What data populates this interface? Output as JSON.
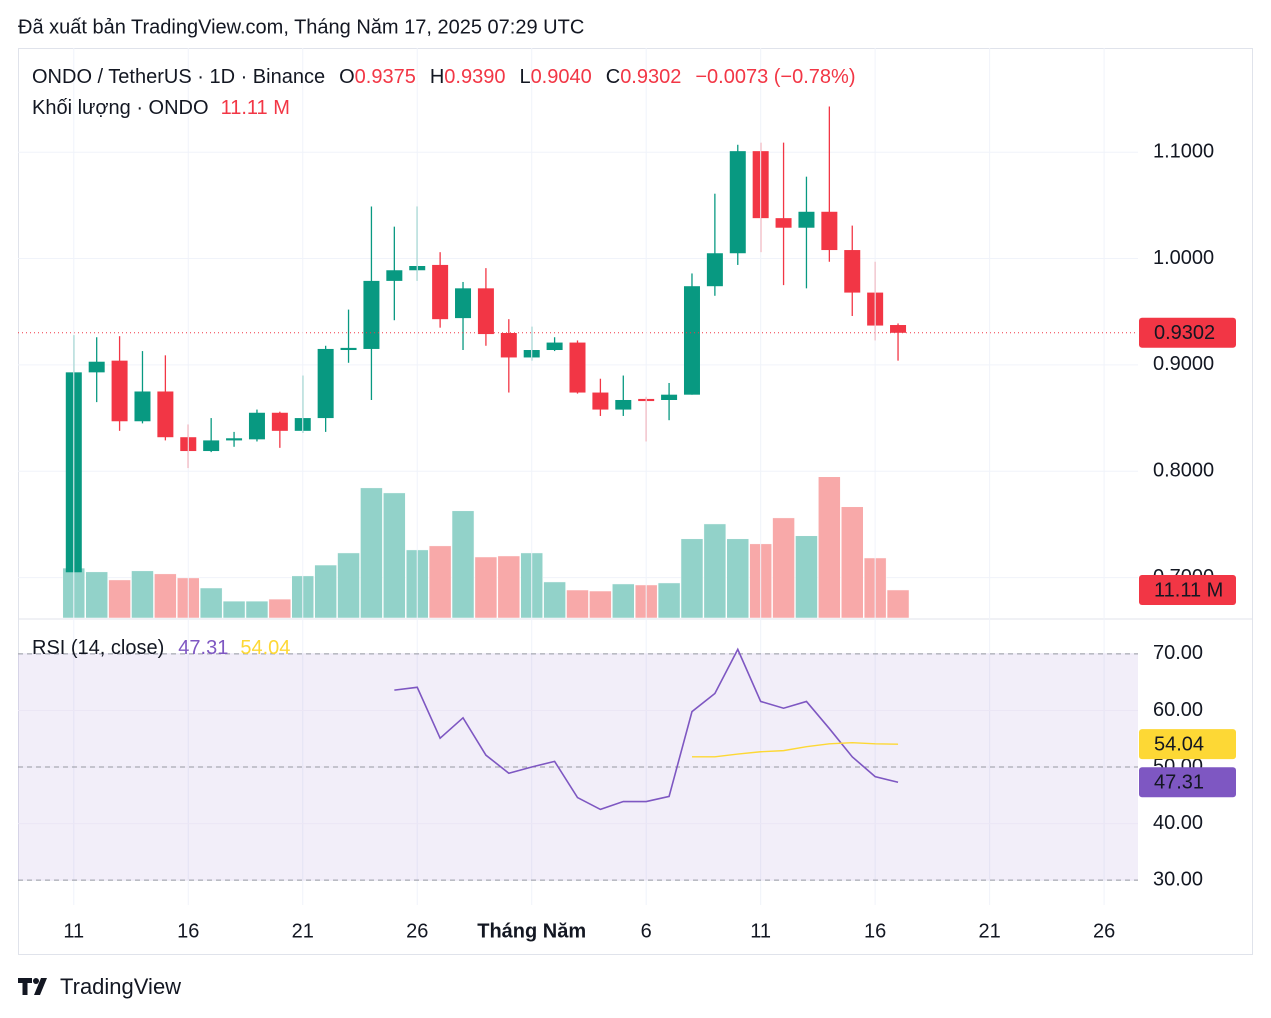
{
  "header": {
    "published": "Đã xuất bản TradingView.com, Tháng Năm 17, 2025 07:29 UTC"
  },
  "legend": {
    "symbol": "ONDO / TetherUS · 1D · Binance",
    "o": "O",
    "open": "0.9375",
    "h": "H",
    "high": "0.9390",
    "l": "L",
    "low": "0.9040",
    "c": "C",
    "close": "0.9302",
    "change": "−0.0073 (−0.78%)",
    "volume_title": "Khối lượng · ONDO",
    "volume": "11.11 M"
  },
  "footer": {
    "brand": "TradingView"
  },
  "chart_data": [
    {
      "type": "candlestick",
      "x": [
        "2025-04-11",
        "2025-04-12",
        "2025-04-13",
        "2025-04-14",
        "2025-04-15",
        "2025-04-16",
        "2025-04-17",
        "2025-04-18",
        "2025-04-19",
        "2025-04-20",
        "2025-04-21",
        "2025-04-22",
        "2025-04-23",
        "2025-04-24",
        "2025-04-25",
        "2025-04-26",
        "2025-04-27",
        "2025-04-28",
        "2025-04-29",
        "2025-04-30",
        "2025-05-01",
        "2025-05-02",
        "2025-05-03",
        "2025-05-04",
        "2025-05-05",
        "2025-05-06",
        "2025-05-07",
        "2025-05-08",
        "2025-05-09",
        "2025-05-10",
        "2025-05-11",
        "2025-05-12",
        "2025-05-13",
        "2025-05-14",
        "2025-05-15",
        "2025-05-16",
        "2025-05-17"
      ],
      "open": [
        0.705,
        0.893,
        0.904,
        0.847,
        0.875,
        0.832,
        0.819,
        0.829,
        0.83,
        0.855,
        0.838,
        0.85,
        0.914,
        0.915,
        0.979,
        0.989,
        0.994,
        0.944,
        0.972,
        0.93,
        0.907,
        0.914,
        0.921,
        0.874,
        0.858,
        0.868,
        0.867,
        0.872,
        0.974,
        1.005,
        1.101,
        1.038,
        1.029,
        1.044,
        1.008,
        0.968,
        0.9375
      ],
      "high": [
        0.928,
        0.926,
        0.927,
        0.913,
        0.909,
        0.844,
        0.85,
        0.837,
        0.858,
        0.856,
        0.89,
        0.918,
        0.952,
        1.049,
        1.03,
        1.049,
        1.006,
        0.978,
        0.991,
        0.943,
        0.936,
        0.926,
        0.923,
        0.887,
        0.89,
        0.87,
        0.883,
        0.986,
        1.061,
        1.107,
        1.109,
        1.109,
        1.077,
        1.143,
        1.031,
        0.997,
        0.939
      ],
      "low": [
        0.705,
        0.865,
        0.838,
        0.845,
        0.829,
        0.803,
        0.818,
        0.823,
        0.828,
        0.822,
        0.836,
        0.837,
        0.902,
        0.867,
        0.942,
        0.979,
        0.935,
        0.914,
        0.918,
        0.874,
        0.904,
        0.913,
        0.873,
        0.852,
        0.852,
        0.828,
        0.848,
        0.872,
        0.965,
        0.994,
        1.006,
        0.975,
        0.972,
        0.997,
        0.946,
        0.923,
        0.904
      ],
      "close": [
        0.893,
        0.903,
        0.847,
        0.875,
        0.832,
        0.819,
        0.829,
        0.831,
        0.855,
        0.838,
        0.85,
        0.915,
        0.916,
        0.979,
        0.989,
        0.993,
        0.943,
        0.972,
        0.929,
        0.907,
        0.914,
        0.921,
        0.874,
        0.858,
        0.867,
        0.866,
        0.872,
        0.974,
        1.005,
        1.101,
        1.038,
        1.029,
        1.044,
        1.008,
        0.968,
        0.937,
        0.9302
      ],
      "volume": [
        19.8,
        18.3,
        15.1,
        18.7,
        17.5,
        15.9,
        11.9,
        6.7,
        6.7,
        7.5,
        16.7,
        21.0,
        25.8,
        51.6,
        49.6,
        27.0,
        28.6,
        42.5,
        24.2,
        24.6,
        25.8,
        14.3,
        11.1,
        10.7,
        13.5,
        13.1,
        13.9,
        31.4,
        37.3,
        31.4,
        29.4,
        39.7,
        32.6,
        56.0,
        44.1,
        23.8,
        11.11
      ],
      "up_color": "#089981",
      "down_color": "#f23645",
      "volume_up_color": "#92d2c9",
      "volume_down_color": "#f8a9a9",
      "xlim": [
        "2025-04-09",
        "2025-05-27"
      ],
      "ylim": [
        0.662,
        1.198
      ],
      "yticks": [
        {
          "value": 0.7,
          "label": "0.7000"
        },
        {
          "value": 0.8,
          "label": "0.8000"
        },
        {
          "value": 0.9,
          "label": "0.9000"
        },
        {
          "value": 1.0,
          "label": "1.0000"
        },
        {
          "value": 1.1,
          "label": "1.1000"
        }
      ],
      "y2lim": [
        0,
        226
      ],
      "grid": true
    },
    {
      "type": "line",
      "title": "RSI (14, close)",
      "x": [
        "2025-04-11",
        "2025-04-12",
        "2025-04-13",
        "2025-04-14",
        "2025-04-15",
        "2025-04-16",
        "2025-04-17",
        "2025-04-18",
        "2025-04-19",
        "2025-04-20",
        "2025-04-21",
        "2025-04-22",
        "2025-04-23",
        "2025-04-24",
        "2025-04-25",
        "2025-04-26",
        "2025-04-27",
        "2025-04-28",
        "2025-04-29",
        "2025-04-30",
        "2025-05-01",
        "2025-05-02",
        "2025-05-03",
        "2025-05-04",
        "2025-05-05",
        "2025-05-06",
        "2025-05-07",
        "2025-05-08",
        "2025-05-09",
        "2025-05-10",
        "2025-05-11",
        "2025-05-12",
        "2025-05-13",
        "2025-05-14",
        "2025-05-15",
        "2025-05-16",
        "2025-05-17"
      ],
      "series": [
        {
          "color": "#7e57c2",
          "value_label": "47.31",
          "values": [
            null,
            null,
            null,
            null,
            null,
            null,
            null,
            null,
            null,
            null,
            null,
            null,
            null,
            null,
            63.6,
            64.1,
            55.1,
            58.7,
            52.1,
            48.9,
            50.0,
            51.0,
            44.6,
            42.5,
            43.9,
            43.9,
            44.8,
            59.8,
            63.0,
            70.8,
            61.6,
            60.4,
            61.6,
            56.8,
            51.8,
            48.3,
            47.31
          ]
        },
        {
          "color": "#fdd835",
          "value_label": "54.04",
          "values": [
            null,
            null,
            null,
            null,
            null,
            null,
            null,
            null,
            null,
            null,
            null,
            null,
            null,
            null,
            null,
            null,
            null,
            null,
            null,
            null,
            null,
            null,
            null,
            null,
            null,
            null,
            null,
            51.8,
            51.8,
            52.3,
            52.7,
            52.9,
            53.6,
            54.1,
            54.3,
            54.1,
            54.04
          ]
        }
      ],
      "band": [
        30,
        70
      ],
      "levels": [
        70,
        50,
        30
      ],
      "xlim": [
        "2025-04-09",
        "2025-05-27"
      ],
      "xticks": [
        {
          "value": "2025-04-11",
          "label": "11"
        },
        {
          "value": "2025-04-16",
          "label": "16"
        },
        {
          "value": "2025-04-21",
          "label": "21"
        },
        {
          "value": "2025-04-26",
          "label": "26"
        },
        {
          "value": "2025-05-01",
          "label": "Tháng Năm"
        },
        {
          "value": "2025-05-06",
          "label": "6"
        },
        {
          "value": "2025-05-11",
          "label": "11"
        },
        {
          "value": "2025-05-16",
          "label": "16"
        },
        {
          "value": "2025-05-21",
          "label": "21"
        },
        {
          "value": "2025-05-26",
          "label": "26"
        }
      ],
      "ylim": [
        25.6,
        76
      ],
      "yticks": [
        {
          "value": 30,
          "label": "30.00"
        },
        {
          "value": 40,
          "label": "40.00"
        },
        {
          "value": 50,
          "label": "50.00"
        },
        {
          "value": 60,
          "label": "60.00"
        },
        {
          "value": 70,
          "label": "70.00"
        }
      ],
      "grid": true
    }
  ]
}
